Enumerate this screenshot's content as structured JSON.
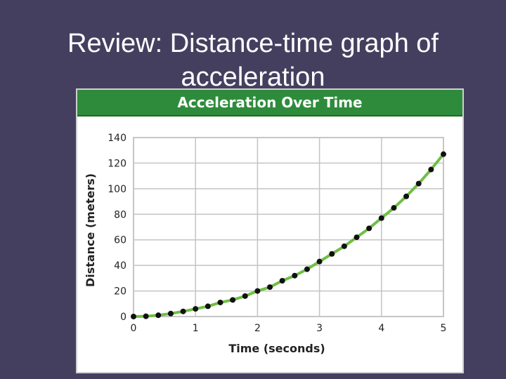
{
  "slide": {
    "title_line1": "Review: Distance-time graph of",
    "title_line2": "acceleration"
  },
  "chart_data": {
    "type": "line",
    "title": "Acceleration Over Time",
    "xlabel": "Time (seconds)",
    "ylabel": "Distance (meters)",
    "xlim": [
      0,
      5
    ],
    "ylim": [
      0,
      140
    ],
    "xticks": [
      0,
      1,
      2,
      3,
      4,
      5
    ],
    "yticks": [
      0,
      20,
      40,
      60,
      80,
      100,
      120,
      140
    ],
    "grid": true,
    "series": [
      {
        "x": [
          0,
          0.2,
          0.4,
          0.6,
          0.8,
          1.0,
          1.2,
          1.4,
          1.6,
          1.8,
          2.0,
          2.2,
          2.4,
          2.6,
          2.8,
          3.0,
          3.2,
          3.4,
          3.6,
          3.8,
          4.0,
          4.2,
          4.4,
          4.6,
          4.8,
          5.0
        ],
        "y": [
          0,
          0.2,
          1,
          2.3,
          4,
          6,
          8,
          11,
          13,
          16,
          20,
          23,
          28,
          32,
          37,
          43,
          49,
          55,
          62,
          69,
          77,
          85,
          94,
          104,
          115,
          127
        ]
      }
    ],
    "colors": {
      "line": "#6fbf44",
      "marker": "#111111",
      "banner": "#2e8b3c"
    }
  }
}
